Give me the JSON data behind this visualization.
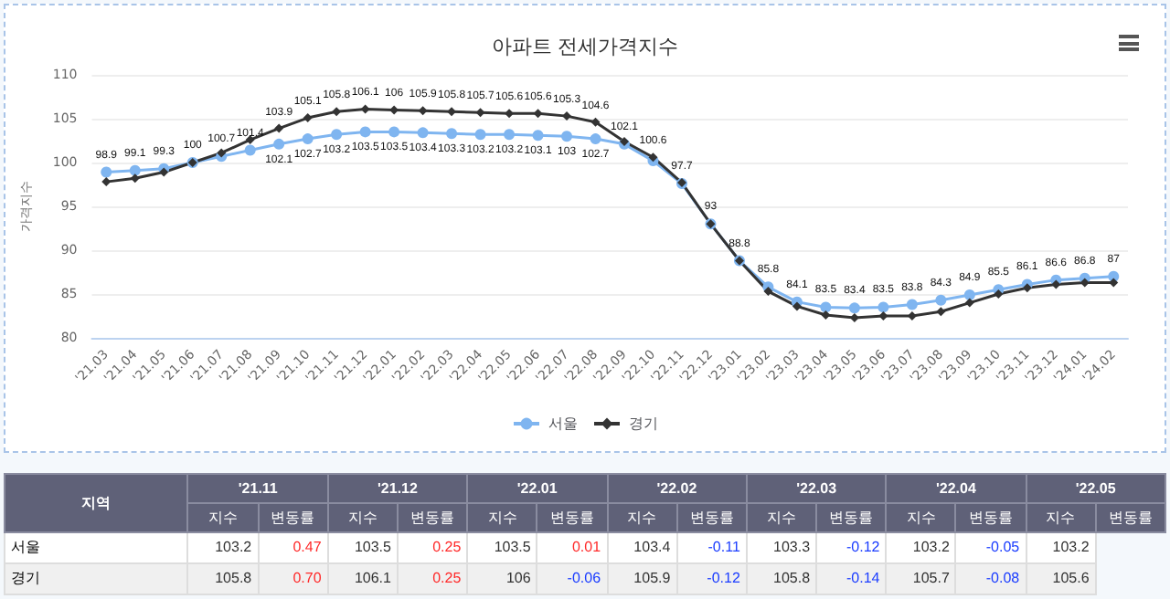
{
  "chart_data": {
    "type": "line",
    "title": "아파트 전세가격지수",
    "ylabel": "가격지수",
    "categories": [
      "'21.03",
      "'21.04",
      "'21.05",
      "'21.06",
      "'21.07",
      "'21.08",
      "'21.09",
      "'21.10",
      "'21.11",
      "'21.12",
      "'22.01",
      "'22.02",
      "'22.03",
      "'22.04",
      "'22.05",
      "'22.06",
      "'22.07",
      "'22.08",
      "'22.09",
      "'22.10",
      "'22.11",
      "'22.12",
      "'23.01",
      "'23.02",
      "'23.03",
      "'23.04",
      "'23.05",
      "'23.06",
      "'23.07",
      "'23.08",
      "'23.09",
      "'23.10",
      "'23.11",
      "'23.12",
      "'24.01",
      "'24.02"
    ],
    "series": [
      {
        "name": "서울",
        "color": "#7fb5f0",
        "marker": "circle",
        "values": [
          98.9,
          99.1,
          99.3,
          100,
          100.7,
          101.4,
          102.1,
          102.7,
          103.2,
          103.5,
          103.5,
          103.4,
          103.3,
          103.2,
          103.2,
          103.1,
          103,
          102.7,
          102.1,
          100.2,
          97.6,
          93,
          88.8,
          85.8,
          84.1,
          83.5,
          83.4,
          83.5,
          83.8,
          84.3,
          84.9,
          85.5,
          86.1,
          86.6,
          86.8,
          87
        ],
        "value_labels": [
          "98.9",
          "99.1",
          "99.3",
          "100",
          "100.7",
          "101.4",
          "102.1",
          "102.7",
          "103.2",
          "103.5",
          "103.5",
          "103.4",
          "103.3",
          "103.2",
          "103.2",
          "103.1",
          "103",
          "102.7",
          "102.1",
          null,
          null,
          "93",
          "88.8",
          "85.8",
          "84.1",
          "83.5",
          "83.4",
          "83.5",
          "83.8",
          "84.3",
          "84.9",
          "85.5",
          "86.1",
          "86.6",
          "86.8",
          "87"
        ]
      },
      {
        "name": "경기",
        "color": "#333333",
        "marker": "diamond",
        "values": [
          97.8,
          98.2,
          98.9,
          100,
          101.1,
          102.6,
          103.9,
          105.1,
          105.8,
          106.1,
          106,
          105.9,
          105.8,
          105.7,
          105.6,
          105.6,
          105.3,
          104.6,
          102.4,
          100.6,
          97.7,
          93,
          88.8,
          85.3,
          83.6,
          82.6,
          82.3,
          82.5,
          82.5,
          83,
          84,
          85,
          85.7,
          86.1,
          86.3,
          86.3
        ],
        "value_labels": [
          null,
          null,
          null,
          null,
          null,
          null,
          "103.9",
          "105.1",
          "105.8",
          "106.1",
          "106",
          "105.9",
          "105.8",
          "105.7",
          "105.6",
          "105.6",
          "105.3",
          "104.6",
          null,
          "100.6",
          "97.7",
          null,
          null,
          null,
          null,
          null,
          null,
          null,
          null,
          null,
          null,
          null,
          null,
          null,
          null,
          null
        ]
      }
    ],
    "ylim": [
      80,
      110
    ],
    "yticks": [
      80,
      85,
      90,
      95,
      100,
      105,
      110
    ],
    "grid": "y",
    "legend": "bottom",
    "annotations": [
      "지역",
      "'21.11",
      "'21.12",
      "'22.01",
      "'22.02",
      "'22.03",
      "'22.04",
      "'22.05",
      "지수",
      "변동률",
      "서울",
      "103.2",
      "0.47",
      "103.5",
      "0.25",
      "103.5",
      "0.01",
      "103.4",
      "-0.11",
      "103.3",
      "-0.12",
      "103.2",
      "-0.05",
      "103.2",
      "경기",
      "105.8",
      "0.70",
      "106.1",
      "0.25",
      "106",
      "-0.06",
      "105.9",
      "-0.12",
      "105.8",
      "-0.14",
      "105.7",
      "-0.08",
      "105.6"
    ]
  }
}
